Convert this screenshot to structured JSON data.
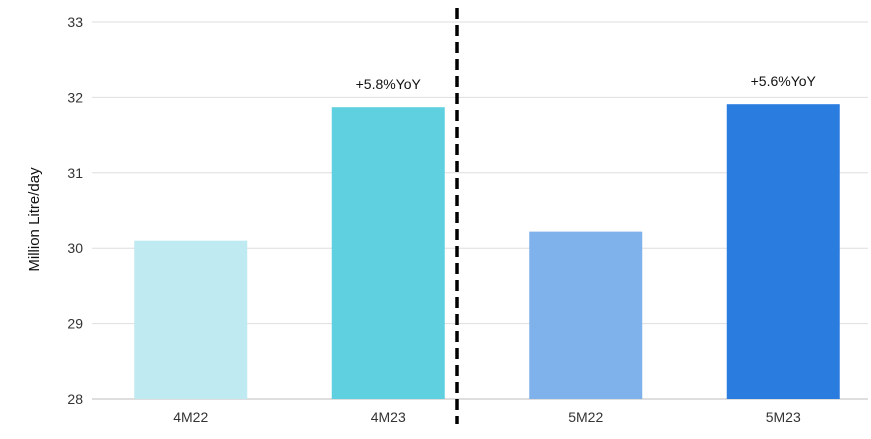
{
  "chart_data": {
    "type": "bar",
    "title": "",
    "xlabel": "",
    "ylabel": "Million Litre/day",
    "ylim": [
      28,
      33
    ],
    "yticks": [
      28,
      29,
      30,
      31,
      32,
      33
    ],
    "grid": true,
    "categories": [
      "4M22",
      "4M23",
      "5M22",
      "5M23"
    ],
    "values": [
      30.1,
      31.87,
      30.22,
      31.91
    ],
    "bar_colors": [
      "#BFEAF1",
      "#5FD0E0",
      "#7FB1EA",
      "#2B7CDF"
    ],
    "annotations": [
      {
        "category": "4M23",
        "text": "+5.8%YoY"
      },
      {
        "category": "5M23",
        "text": "+5.6%YoY"
      }
    ],
    "divider": {
      "between": [
        "4M23",
        "5M22"
      ],
      "style": "dashed",
      "color": "#000000"
    }
  }
}
